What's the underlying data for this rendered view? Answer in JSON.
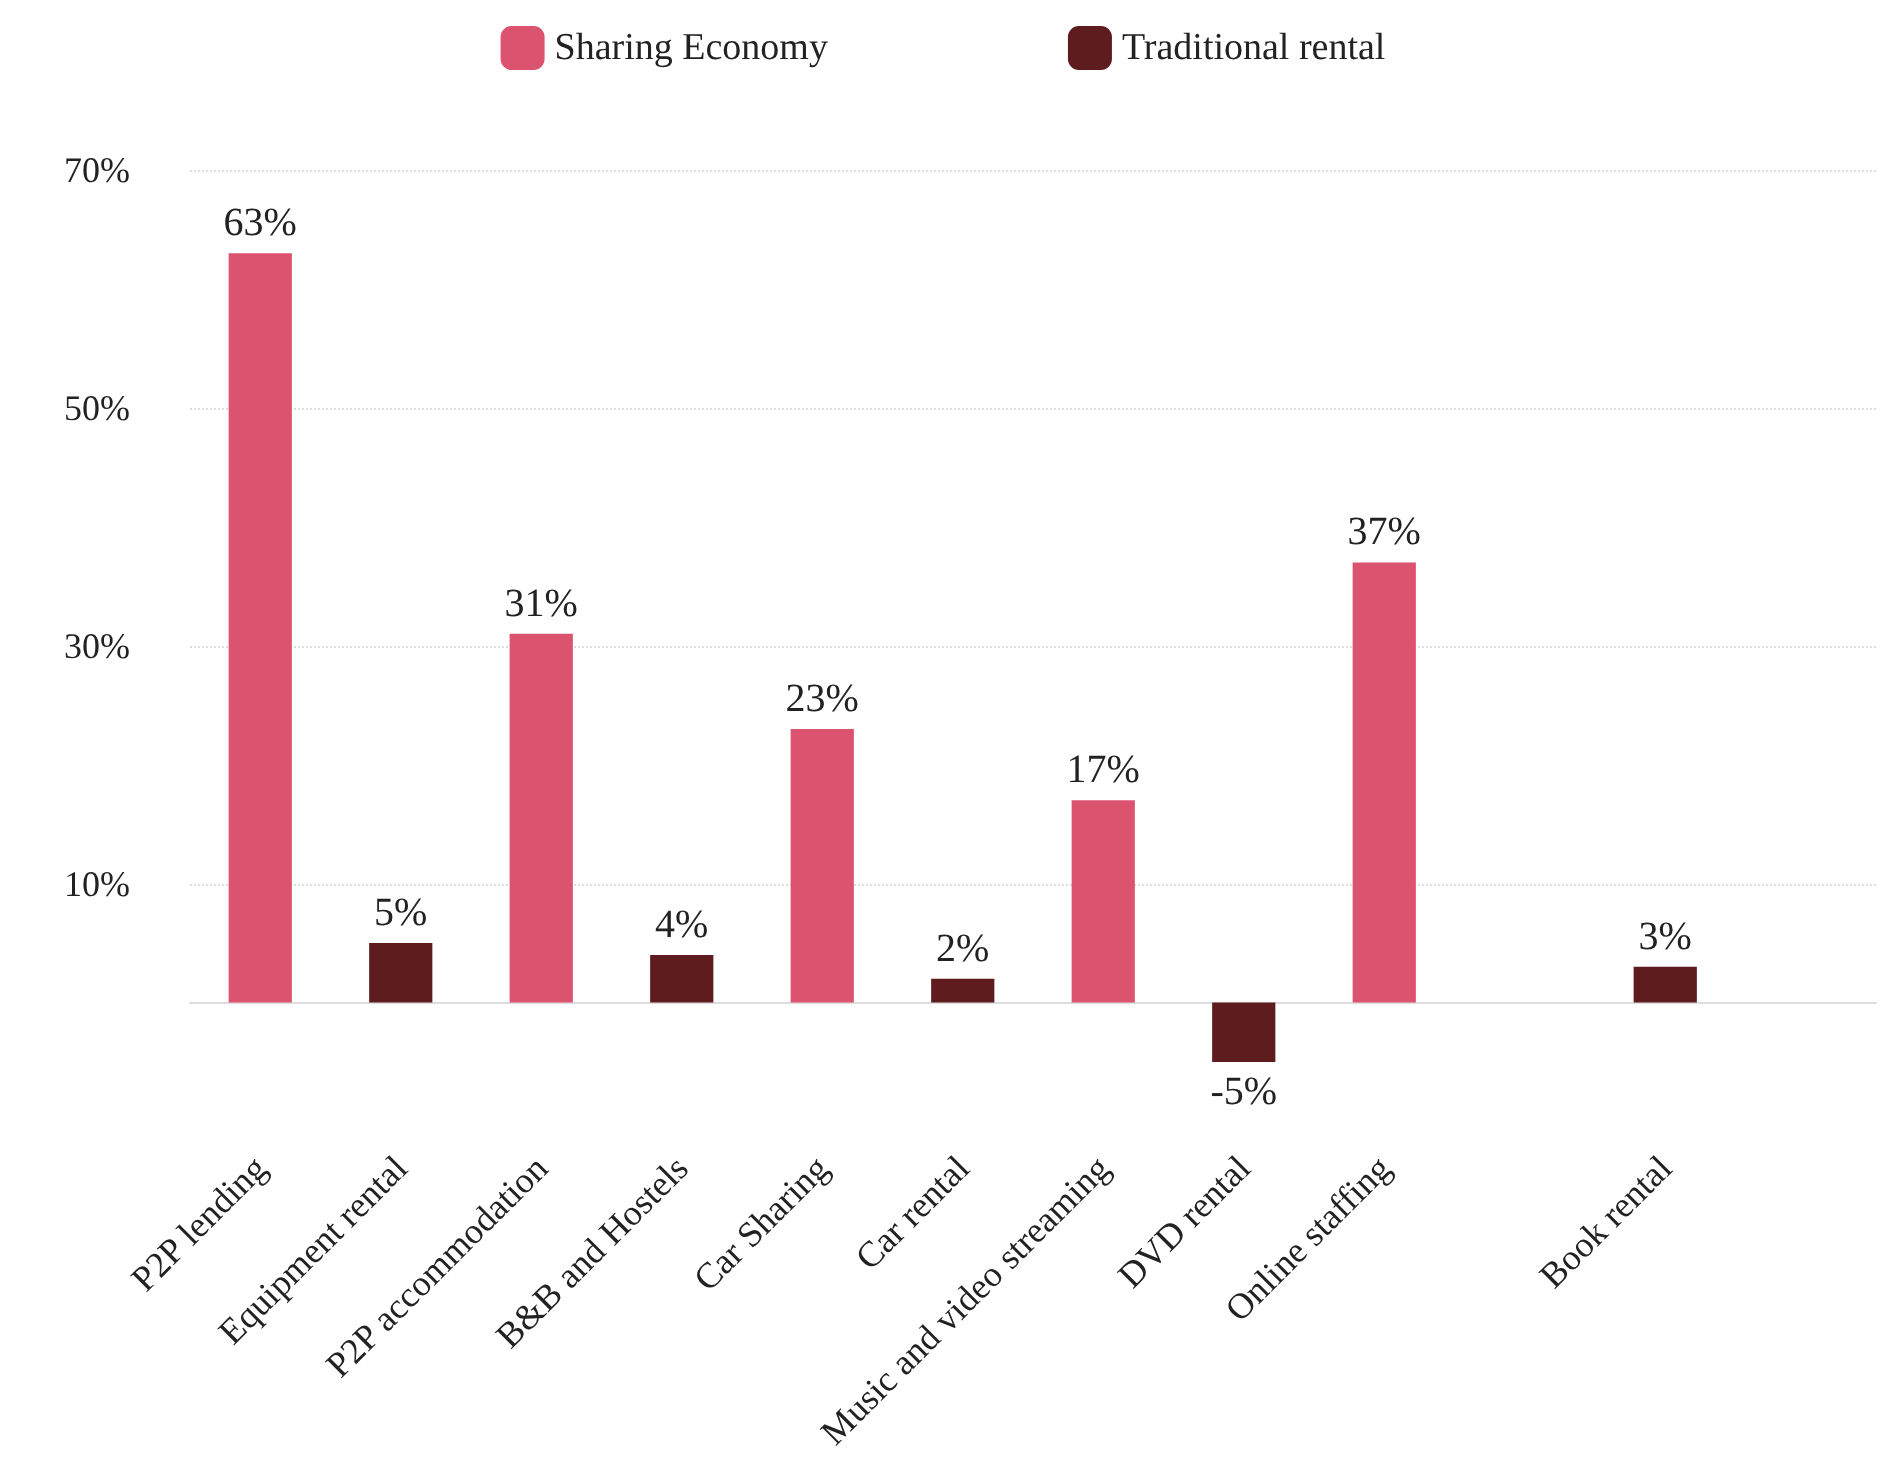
{
  "chart_data": {
    "type": "bar",
    "categories": [
      "P2P lending",
      "Equipment rental",
      "P2P accommodation",
      "B&B and Hostels",
      "Car Sharing",
      "Car rental",
      "Music and video streaming",
      "DVD rental",
      "Online staffing",
      null,
      "Book rental",
      null
    ],
    "series": [
      {
        "name": "Sharing Economy",
        "color": "#dc5370",
        "values": [
          63,
          null,
          31,
          null,
          23,
          null,
          17,
          null,
          37,
          null,
          null,
          null
        ],
        "value_labels": [
          "63%",
          null,
          "31%",
          null,
          "23%",
          null,
          "17%",
          null,
          "37%",
          null,
          null,
          null
        ]
      },
      {
        "name": "Traditional rental",
        "color": "#5e1c1f",
        "values": [
          null,
          5,
          null,
          4,
          null,
          2,
          null,
          -5,
          null,
          null,
          3,
          null
        ],
        "value_labels": [
          null,
          "5%",
          null,
          "4%",
          null,
          "2%",
          null,
          "-5%",
          null,
          null,
          "3%",
          null
        ]
      }
    ],
    "stacked": true,
    "ylim": [
      -5,
      70
    ],
    "yticks": [
      {
        "value": 10,
        "label": "10%"
      },
      {
        "value": 30,
        "label": "30%"
      },
      {
        "value": 50,
        "label": "50%"
      },
      {
        "value": 70,
        "label": "70%"
      }
    ],
    "grid": "y",
    "legend": "top"
  }
}
